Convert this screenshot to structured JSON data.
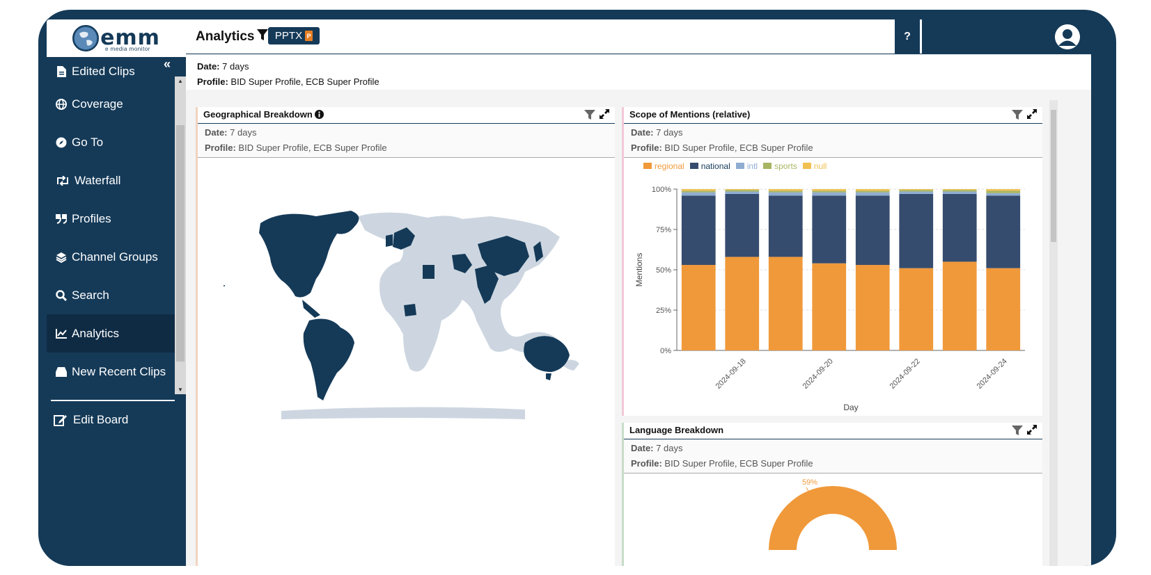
{
  "app": {
    "logo_text": "emm",
    "logo_subtitle": "e media monitor"
  },
  "sidebar": {
    "items": [
      {
        "label": "Edited Clips",
        "icon": "file-icon"
      },
      {
        "label": "Coverage",
        "icon": "globe-icon"
      },
      {
        "label": "Go To",
        "icon": "compass-icon"
      },
      {
        "label": "Waterfall",
        "icon": "retweet-icon"
      },
      {
        "label": "Profiles",
        "icon": "quote-icon"
      },
      {
        "label": "Channel Groups",
        "icon": "layers-icon"
      },
      {
        "label": "Search",
        "icon": "search-icon"
      },
      {
        "label": "Analytics",
        "icon": "chart-line-icon",
        "active": true
      },
      {
        "label": "New Recent Clips",
        "icon": "inbox-icon"
      }
    ],
    "edit_board": "Edit Board"
  },
  "topbar": {
    "title": "Analytics",
    "pptx_label": "PPTX",
    "help_label": "?"
  },
  "filters": {
    "date_label": "Date:",
    "date_value": "7 days",
    "profile_label": "Profile:",
    "profile_value": "BID Super Profile, ECB Super Profile"
  },
  "cards": {
    "geo": {
      "title": "Geographical Breakdown"
    },
    "scope": {
      "title": "Scope of Mentions (relative)"
    },
    "lang": {
      "title": "Language Breakdown",
      "top_label": "59%"
    }
  },
  "colors": {
    "regional": "#f0993a",
    "national": "#364c6e",
    "intl": "#8fadd1",
    "sports": "#a8b563",
    "null": "#f0c050",
    "map_highlight": "#153a58",
    "map_base": "#cdd6e0"
  },
  "chart_data": {
    "type": "bar",
    "stacked": true,
    "xlabel": "Day",
    "ylabel": "Mentions",
    "ylim": [
      0,
      100
    ],
    "yticks": [
      "0%",
      "25%",
      "50%",
      "75%",
      "100%"
    ],
    "categories": [
      "2024-09-17",
      "2024-09-18",
      "2024-09-19",
      "2024-09-20",
      "2024-09-21",
      "2024-09-22",
      "2024-09-23",
      "2024-09-24"
    ],
    "xtick_labels": [
      "",
      "2024-09-18",
      "",
      "2024-09-20",
      "",
      "2024-09-22",
      "",
      "2024-09-24"
    ],
    "legend_position": "top-left",
    "series": [
      {
        "name": "regional",
        "values": [
          53,
          58,
          58,
          54,
          53,
          51,
          55,
          51
        ]
      },
      {
        "name": "national",
        "values": [
          43,
          39,
          38,
          42,
          43,
          46,
          42,
          45
        ]
      },
      {
        "name": "intl",
        "values": [
          2,
          1.5,
          2,
          2,
          2,
          1.5,
          1.5,
          1.5
        ]
      },
      {
        "name": "sports",
        "values": [
          1,
          1,
          1,
          1,
          1,
          1,
          1,
          1.5
        ]
      },
      {
        "name": "null",
        "values": [
          1,
          0.5,
          1,
          1,
          1,
          0.5,
          0.5,
          1
        ]
      }
    ]
  }
}
